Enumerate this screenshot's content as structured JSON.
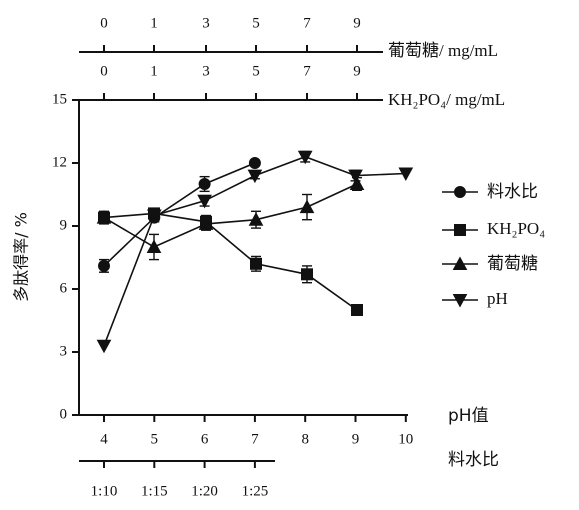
{
  "chart_data": {
    "type": "line",
    "ylabel": "多肽得率/ %",
    "ylim": [
      0,
      15
    ],
    "y_ticks": [
      "0",
      "3",
      "6",
      "9",
      "12",
      "15"
    ],
    "x_axes": {
      "bottom": {
        "label": "pH值",
        "ticks": [
          "4",
          "5",
          "6",
          "7",
          "8",
          "9",
          "10"
        ]
      },
      "bottom2": {
        "label": "料水比",
        "ticks": [
          "1:10",
          "1:15",
          "1:20",
          "1:25"
        ]
      },
      "top1": {
        "label": "KH₂PO₄/ mg/mL",
        "ticks": [
          "0",
          "1",
          "3",
          "5",
          "7",
          "9"
        ]
      },
      "top2": {
        "label": "葡萄糖/  mg/mL",
        "ticks": [
          "0",
          "1",
          "3",
          "5",
          "7",
          "9"
        ]
      }
    },
    "legend_position": "right",
    "series": [
      {
        "name": "料水比",
        "marker": "circle",
        "axis": "bottom2",
        "x": [
          "1:10",
          "1:15",
          "1:20",
          "1:25"
        ],
        "values": [
          7.1,
          9.4,
          11.0,
          12.0
        ],
        "errors": [
          0.3,
          0.2,
          0.35,
          0.1
        ]
      },
      {
        "name": "KH₂PO₄",
        "marker": "square",
        "axis": "top1",
        "x": [
          "0",
          "1",
          "3",
          "5",
          "7",
          "9"
        ],
        "values": [
          9.4,
          9.6,
          9.2,
          7.2,
          6.7,
          5.0
        ],
        "errors": [
          0.3,
          0.15,
          0.3,
          0.35,
          0.4,
          0.0
        ]
      },
      {
        "name": "葡萄糖",
        "marker": "triangle-up",
        "axis": "top2",
        "x": [
          "0",
          "1",
          "3",
          "5",
          "7",
          "9"
        ],
        "values": [
          9.4,
          8.0,
          9.1,
          9.3,
          9.9,
          11.0
        ],
        "errors": [
          0.25,
          0.6,
          0.3,
          0.4,
          0.6,
          0.3
        ]
      },
      {
        "name": "pH",
        "marker": "triangle-down",
        "axis": "bottom",
        "x": [
          "4",
          "5",
          "6",
          "7",
          "8",
          "9",
          "10"
        ],
        "values": [
          3.3,
          9.5,
          10.2,
          11.4,
          12.3,
          11.4,
          11.5
        ],
        "errors": [
          0.0,
          0.2,
          0.25,
          0.15,
          0.25,
          0.25,
          0.0
        ]
      }
    ]
  }
}
